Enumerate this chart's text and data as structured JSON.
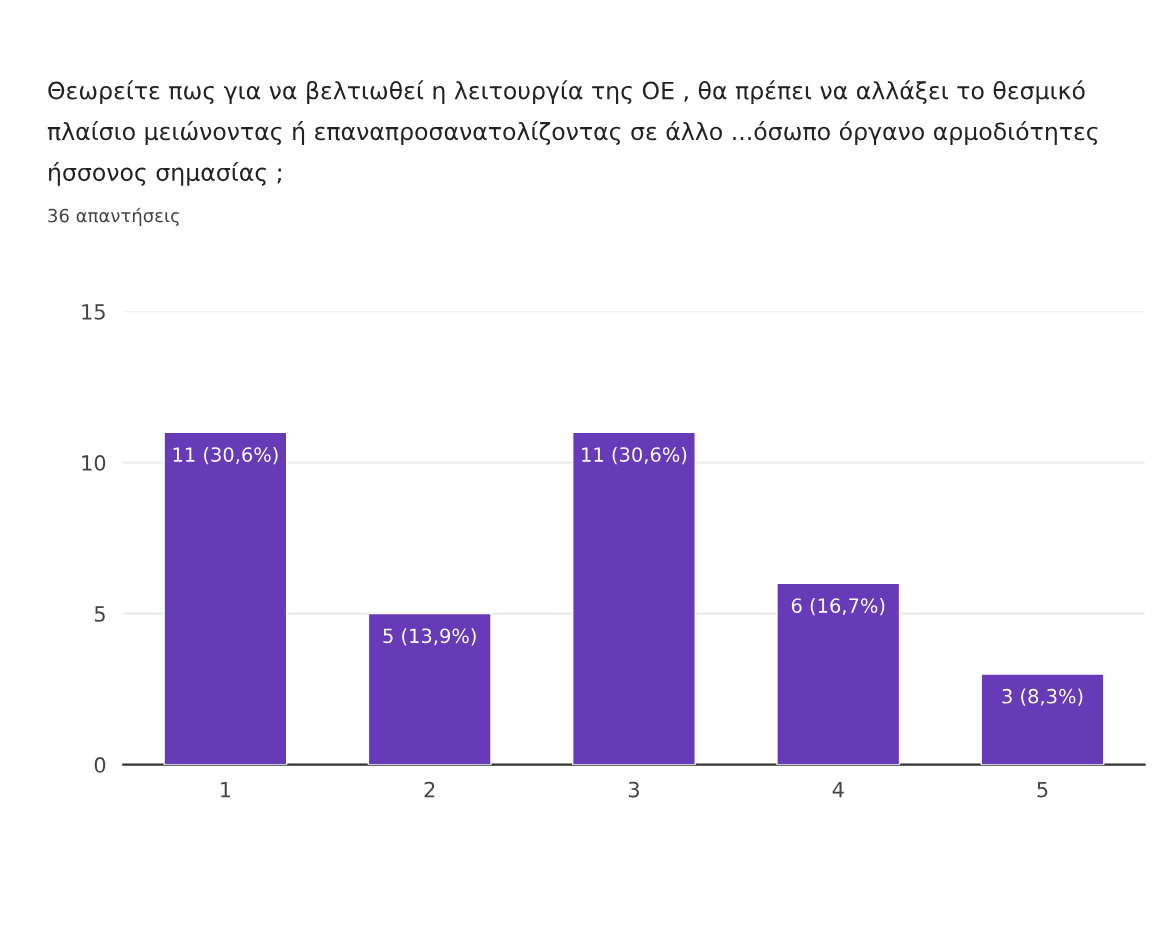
{
  "chart_data": {
    "type": "bar",
    "title": "Θεωρείτε πως για να βελτιωθεί η λειτουργία της ΟΕ , θα πρέπει να αλλάξει το θεσμικό πλαίσιο μειώνοντας ή επαναπροσανατολίζοντας σε άλλο ...όσωπο όργανο αρμοδιότητες ήσσονος σημασίας ;",
    "subtitle": "36 απαντήσεις",
    "categories": [
      "1",
      "2",
      "3",
      "4",
      "5"
    ],
    "values": [
      11,
      5,
      11,
      6,
      3
    ],
    "value_labels": [
      "11 (30,6%)",
      "5 (13,9%)",
      "11 (30,6%)",
      "6 (16,7%)",
      "3 (8,3%)"
    ],
    "color": "#673ab7",
    "ylim": [
      0,
      15
    ],
    "yticks": [
      0,
      5,
      10,
      15
    ],
    "grid": "y"
  }
}
